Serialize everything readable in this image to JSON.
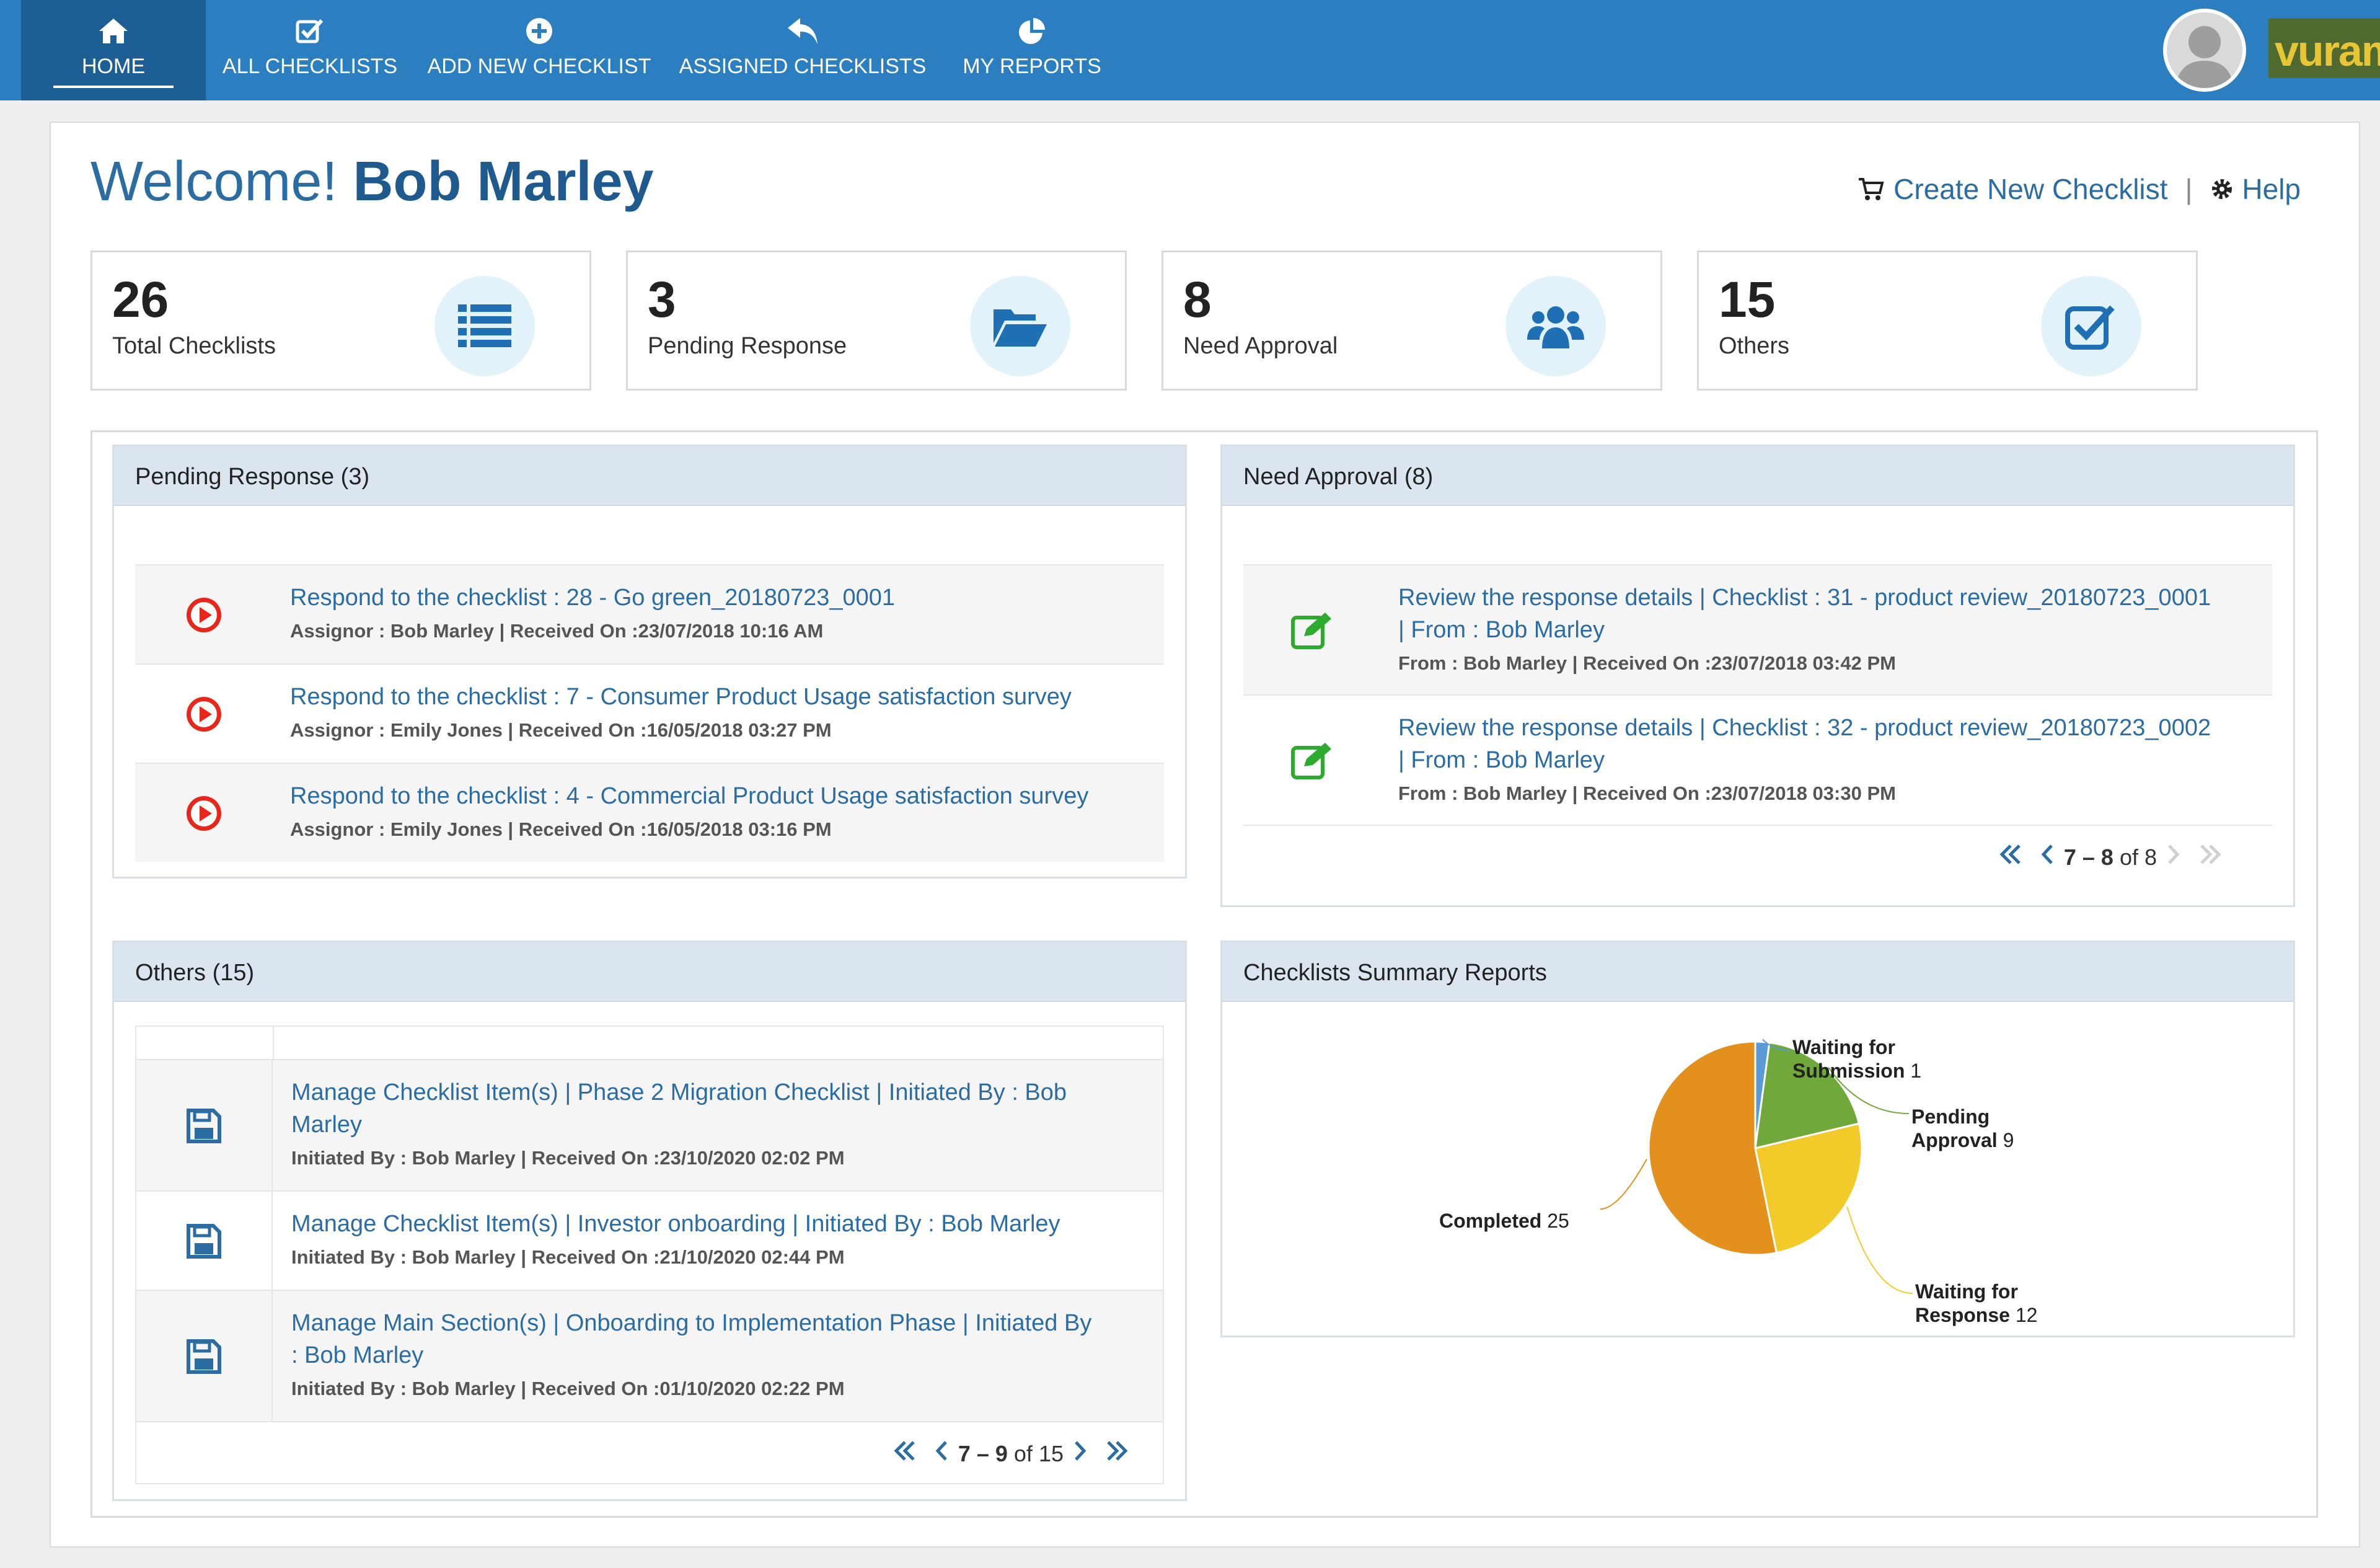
{
  "nav": {
    "items": [
      {
        "label": "HOME",
        "icon": "home-icon"
      },
      {
        "label": "ALL CHECKLISTS",
        "icon": "checkbox-icon"
      },
      {
        "label": "ADD NEW CHECKLIST",
        "icon": "plus-circle-icon"
      },
      {
        "label": "ASSIGNED CHECKLISTS",
        "icon": "reply-icon"
      },
      {
        "label": "MY REPORTS",
        "icon": "pie-chart-icon"
      }
    ],
    "brand": "vuram",
    "colors": {
      "bar": "#2b7fc1",
      "active": "#1d5f94"
    }
  },
  "welcome": {
    "greeting": "Welcome!",
    "name": "Bob Marley"
  },
  "toplinks": {
    "create": "Create New Checklist",
    "sep": "|",
    "help": "Help"
  },
  "stats": [
    {
      "value": "26",
      "label": "Total Checklists",
      "icon": "list-icon"
    },
    {
      "value": "3",
      "label": "Pending Response",
      "icon": "folder-open-icon"
    },
    {
      "value": "8",
      "label": "Need Approval",
      "icon": "users-icon"
    },
    {
      "value": "15",
      "label": "Others",
      "icon": "check-square-icon"
    }
  ],
  "pending": {
    "title": "Pending Response (3)",
    "rows": [
      {
        "title": "Respond to the checklist : 28 - Go green_20180723_0001",
        "meta": "Assignor : Bob Marley  |  Received On :23/07/2018 10:16 AM"
      },
      {
        "title": "Respond to the checklist : 7 - Consumer Product Usage satisfaction survey",
        "meta": "Assignor : Emily Jones  |  Received On :16/05/2018 03:27 PM"
      },
      {
        "title": "Respond to the checklist : 4 - Commercial Product Usage satisfaction survey",
        "meta": "Assignor : Emily Jones  |  Received On :16/05/2018 03:16 PM"
      }
    ]
  },
  "approval": {
    "title": "Need Approval (8)",
    "rows": [
      {
        "title1": "Review the response details  | Checklist : 31 - product review_20180723_0001",
        "title2": "| From : Bob Marley",
        "meta": "From : Bob Marley  |  Received On :23/07/2018 03:42 PM"
      },
      {
        "title1": "Review the response details  | Checklist : 32 - product review_20180723_0002",
        "title2": "| From : Bob Marley",
        "meta": "From : Bob Marley  |  Received On :23/07/2018 03:30 PM"
      }
    ],
    "pager": {
      "range": "7 – 8",
      "of": "of 8"
    }
  },
  "others": {
    "title": "Others (15)",
    "rows": [
      {
        "title1": "Manage Checklist Item(s) | Phase 2 Migration Checklist | Initiated By : Bob",
        "title2": "Marley",
        "meta": "Initiated By : Bob Marley  |  Received On :23/10/2020 02:02 PM"
      },
      {
        "title1": "Manage Checklist Item(s) | Investor onboarding | Initiated By : Bob Marley",
        "title2": "",
        "meta": "Initiated By : Bob Marley  |  Received On :21/10/2020 02:44 PM"
      },
      {
        "title1": "Manage Main Section(s) | Onboarding to Implementation Phase | Initiated By",
        "title2": ": Bob Marley",
        "meta": "Initiated By : Bob Marley  |  Received On :01/10/2020 02:22 PM"
      }
    ],
    "pager": {
      "range": "7 – 9",
      "of": "of 15"
    }
  },
  "summary": {
    "title": "Checklists Summary Reports"
  },
  "chart_data": {
    "type": "pie",
    "title": "",
    "slices": [
      {
        "name": "Waiting for Submission",
        "value": 1,
        "color": "#5b9bd5"
      },
      {
        "name": "Pending Approval",
        "value": 9,
        "color": "#70a83b"
      },
      {
        "name": "Waiting for Response",
        "value": 12,
        "color": "#f2cb2b"
      },
      {
        "name": "Completed",
        "value": 25,
        "color": "#e3901c"
      }
    ],
    "labels": [
      {
        "l1": "Waiting for",
        "l2": "Submission",
        "val": "1"
      },
      {
        "l1": "Pending",
        "l2": "Approval",
        "val": "9"
      },
      {
        "l1": "Waiting for",
        "l2": "Response",
        "val": "12"
      },
      {
        "l1": "Completed",
        "l2": "",
        "val": "25"
      }
    ]
  }
}
